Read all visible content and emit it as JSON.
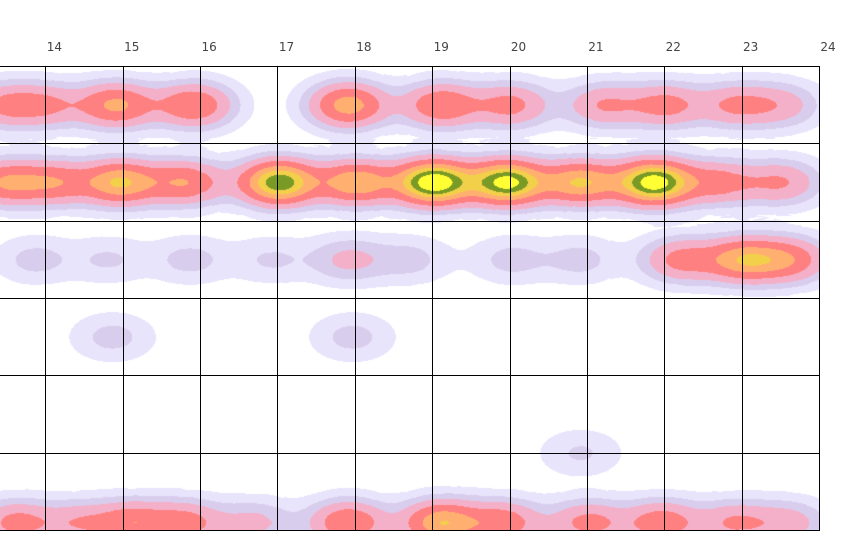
{
  "chart_data": {
    "type": "heatmap",
    "title": "",
    "xlabel": "",
    "ylabel": "",
    "x_ticks": [
      "14",
      "15",
      "16",
      "17",
      "18",
      "19",
      "20",
      "21",
      "22",
      "23",
      "24"
    ],
    "x_range": [
      13.4,
      24
    ],
    "y_range": [
      0,
      6
    ],
    "grid": true,
    "series": [
      {
        "values": [
          {
            "x": 13.45,
            "y": 0.5,
            "v": 0.3
          },
          {
            "x": 14,
            "y": 0.5,
            "v": 0.28
          },
          {
            "x": 14.9,
            "y": 0.5,
            "v": 0.5
          },
          {
            "x": 15.9,
            "y": 0.5,
            "v": 0.45
          },
          {
            "x": 17.9,
            "y": 0.5,
            "v": 0.55
          },
          {
            "x": 19.1,
            "y": 0.5,
            "v": 0.45
          },
          {
            "x": 20,
            "y": 0.5,
            "v": 0.35
          },
          {
            "x": 21.2,
            "y": 0.5,
            "v": 0.3
          },
          {
            "x": 22,
            "y": 0.5,
            "v": 0.35
          },
          {
            "x": 22.9,
            "y": 0.5,
            "v": 0.3
          },
          {
            "x": 23.5,
            "y": 0.5,
            "v": 0.22
          }
        ]
      },
      {
        "values": [
          {
            "x": 13.45,
            "y": 1.5,
            "v": 0.45
          },
          {
            "x": 14.1,
            "y": 1.5,
            "v": 0.4
          },
          {
            "x": 14.95,
            "y": 1.5,
            "v": 0.62
          },
          {
            "x": 15.8,
            "y": 1.5,
            "v": 0.45
          },
          {
            "x": 17,
            "y": 1.5,
            "v": 0.85
          },
          {
            "x": 18,
            "y": 1.5,
            "v": 0.6
          },
          {
            "x": 19,
            "y": 1.5,
            "v": 1.0
          },
          {
            "x": 19.95,
            "y": 1.5,
            "v": 0.92
          },
          {
            "x": 20.9,
            "y": 1.5,
            "v": 0.62
          },
          {
            "x": 21.85,
            "y": 1.5,
            "v": 0.95
          },
          {
            "x": 22.7,
            "y": 1.5,
            "v": 0.35
          },
          {
            "x": 23.5,
            "y": 1.5,
            "v": 0.3
          }
        ]
      },
      {
        "values": [
          {
            "x": 13.85,
            "y": 2.5,
            "v": 0.12
          },
          {
            "x": 14.8,
            "y": 2.5,
            "v": 0.1
          },
          {
            "x": 15.85,
            "y": 2.5,
            "v": 0.12
          },
          {
            "x": 16.9,
            "y": 2.5,
            "v": 0.1
          },
          {
            "x": 17.9,
            "y": 2.5,
            "v": 0.2
          },
          {
            "x": 18.7,
            "y": 2.5,
            "v": 0.12
          },
          {
            "x": 20,
            "y": 2.5,
            "v": 0.12
          },
          {
            "x": 20.9,
            "y": 2.5,
            "v": 0.12
          },
          {
            "x": 22.2,
            "y": 2.5,
            "v": 0.35
          },
          {
            "x": 23,
            "y": 2.5,
            "v": 0.55
          },
          {
            "x": 23.6,
            "y": 2.5,
            "v": 0.4
          }
        ]
      },
      {
        "values": [
          {
            "x": 14.85,
            "y": 3.5,
            "v": 0.12
          },
          {
            "x": 17.95,
            "y": 3.5,
            "v": 0.12
          }
        ]
      },
      {
        "values": [
          {
            "x": 20.9,
            "y": 5.0,
            "v": 0.1
          }
        ]
      },
      {
        "values": [
          {
            "x": 13.6,
            "y": 5.9,
            "v": 0.35
          },
          {
            "x": 14.4,
            "y": 5.9,
            "v": 0.25
          },
          {
            "x": 15.1,
            "y": 5.9,
            "v": 0.4
          },
          {
            "x": 15.8,
            "y": 5.9,
            "v": 0.35
          },
          {
            "x": 16.7,
            "y": 5.9,
            "v": 0.2
          },
          {
            "x": 17.9,
            "y": 5.9,
            "v": 0.45
          },
          {
            "x": 19.1,
            "y": 5.9,
            "v": 0.6
          },
          {
            "x": 19.9,
            "y": 5.9,
            "v": 0.4
          },
          {
            "x": 21,
            "y": 5.9,
            "v": 0.35
          },
          {
            "x": 21.95,
            "y": 5.9,
            "v": 0.4
          },
          {
            "x": 22.9,
            "y": 5.9,
            "v": 0.3
          },
          {
            "x": 23.6,
            "y": 5.9,
            "v": 0.22
          }
        ]
      }
    ],
    "colors": {
      "scale": [
        "#ffffff",
        "#e8e4fb",
        "#d9cdee",
        "#f4b0c8",
        "#ff8080",
        "#ffb070",
        "#f2d04a",
        "#7a9a26",
        "#ffff33"
      ],
      "grid": "#000000",
      "tick_text": "#444444"
    }
  }
}
